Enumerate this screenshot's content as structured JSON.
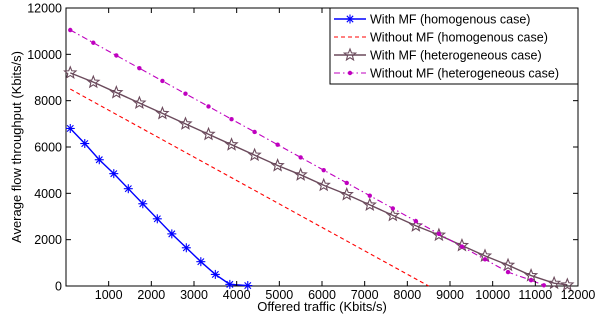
{
  "chart_data": {
    "type": "line",
    "title": "",
    "xlabel": "Offered traffic (Kbits/s)",
    "ylabel": "Average flow throughput (Kbits/s)",
    "xlim": [
      0,
      12000
    ],
    "ylim": [
      0,
      12000
    ],
    "xticks": [
      1000,
      2000,
      3000,
      4000,
      5000,
      6000,
      7000,
      8000,
      9000,
      10000,
      11000,
      12000
    ],
    "yticks": [
      0,
      2000,
      4000,
      6000,
      8000,
      10000,
      12000
    ],
    "grid": false,
    "legend_position": "top-right",
    "series": [
      {
        "name": "With MF (homogenous case)",
        "color": "#0000ff",
        "line_style": "solid",
        "marker": "asterisk",
        "x": [
          100,
          440,
          780,
          1120,
          1460,
          1800,
          2140,
          2480,
          2820,
          3160,
          3500,
          3840,
          4260
        ],
        "y": [
          6800,
          6150,
          5450,
          4850,
          4200,
          3550,
          2900,
          2250,
          1650,
          1050,
          500,
          70,
          20
        ]
      },
      {
        "name": "Without MF (homogenous case)",
        "color": "#ff0000",
        "line_style": "dashed",
        "marker": "none",
        "x": [
          100,
          8500
        ],
        "y": [
          8500,
          0
        ]
      },
      {
        "name": "With MF (heterogeneous case)",
        "color": "#6b4a5c",
        "line_style": "solid",
        "marker": "star",
        "x": [
          100,
          640,
          1180,
          1720,
          2260,
          2800,
          3340,
          3880,
          4420,
          4960,
          5500,
          6040,
          6580,
          7120,
          7660,
          8200,
          8740,
          9280,
          9820,
          10360,
          10900,
          11440,
          11750
        ],
        "y": [
          9200,
          8800,
          8350,
          7900,
          7450,
          7000,
          6550,
          6100,
          5650,
          5200,
          4800,
          4350,
          3950,
          3500,
          3050,
          2600,
          2200,
          1750,
          1300,
          900,
          450,
          120,
          50
        ]
      },
      {
        "name": "Without MF (heterogeneous case)",
        "color": "#bf00bf",
        "line_style": "dashdot",
        "marker": "dot",
        "x": [
          100,
          640,
          1180,
          1720,
          2260,
          2800,
          3340,
          3880,
          4420,
          4960,
          5500,
          6040,
          6580,
          7120,
          7660,
          8200,
          8740,
          9280,
          9820,
          10360,
          10900,
          11200
        ],
        "y": [
          11050,
          10500,
          9950,
          9400,
          8850,
          8300,
          7750,
          7200,
          6650,
          6100,
          5550,
          5000,
          4450,
          3900,
          3350,
          2800,
          2250,
          1700,
          1150,
          600,
          250,
          30
        ]
      }
    ]
  }
}
